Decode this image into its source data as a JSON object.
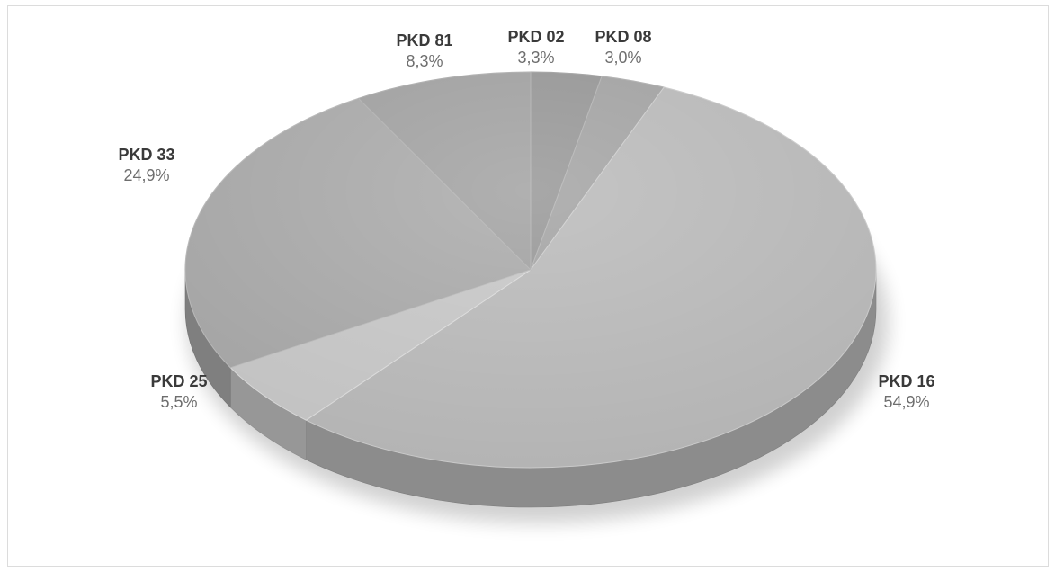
{
  "chart_data": {
    "type": "pie",
    "title": "",
    "categories": [
      "PKD 02",
      "PKD 08",
      "PKD 16",
      "PKD 25",
      "PKD 33",
      "PKD 81"
    ],
    "values": [
      3.3,
      3.0,
      54.9,
      5.5,
      24.9,
      8.3
    ],
    "value_labels": [
      "3,3%",
      "3,0%",
      "54,9%",
      "5,5%",
      "24,9%",
      "8,3%"
    ],
    "legend": "none",
    "colors": {
      "PKD 02": "#8f8f8f",
      "PKD 08": "#9c9c9c",
      "PKD 16": "#b4b4b4",
      "PKD 25": "#c2c2c2",
      "PKD 33": "#a3a3a3",
      "PKD 81": "#9a9a9a"
    }
  }
}
